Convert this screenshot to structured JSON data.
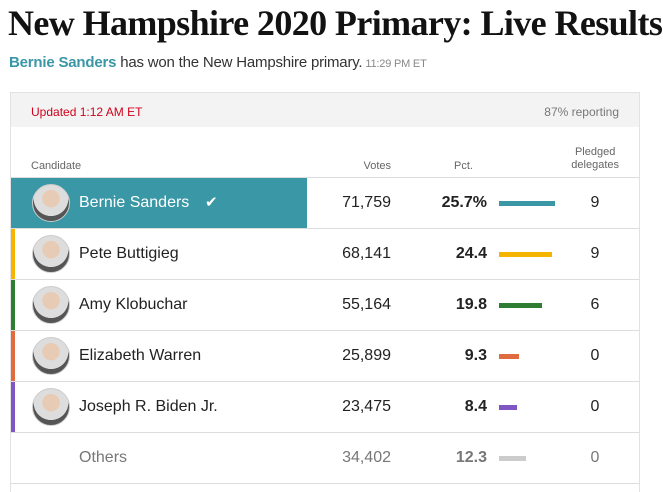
{
  "title": "New Hampshire 2020 Primary: Live Results",
  "subtitle": {
    "winner": "Bernie Sanders",
    "text": "has won the New Hampshire primary.",
    "time": "11:29 PM ET"
  },
  "status": {
    "updated": "Updated 1:12 AM ET",
    "reporting": "87% reporting"
  },
  "columns": {
    "candidate": "Candidate",
    "votes": "Votes",
    "pct": "Pct.",
    "delegates_1": "Pledged",
    "delegates_2": "delegates"
  },
  "colors": {
    "accent": "#3a97a6",
    "updated": "#d0021b"
  },
  "rows": [
    {
      "name": "Bernie Sanders",
      "votes": "71,759",
      "pct": "25.7%",
      "pct_value": 25.7,
      "delegates": "9",
      "color": "#3a97a6",
      "winner": true,
      "check": "✔"
    },
    {
      "name": "Pete Buttigieg",
      "votes": "68,141",
      "pct": "24.4",
      "pct_value": 24.4,
      "delegates": "9",
      "color": "#f5b400"
    },
    {
      "name": "Amy Klobuchar",
      "votes": "55,164",
      "pct": "19.8",
      "pct_value": 19.8,
      "delegates": "6",
      "color": "#2e7d32"
    },
    {
      "name": "Elizabeth Warren",
      "votes": "25,899",
      "pct": "9.3",
      "pct_value": 9.3,
      "delegates": "0",
      "color": "#e06b3f"
    },
    {
      "name": "Joseph R. Biden Jr.",
      "votes": "23,475",
      "pct": "8.4",
      "pct_value": 8.4,
      "delegates": "0",
      "color": "#7e57c2"
    },
    {
      "name": "Others",
      "votes": "34,402",
      "pct": "12.3",
      "pct_value": 12.3,
      "delegates": "0",
      "color": "#cccccc"
    }
  ]
}
